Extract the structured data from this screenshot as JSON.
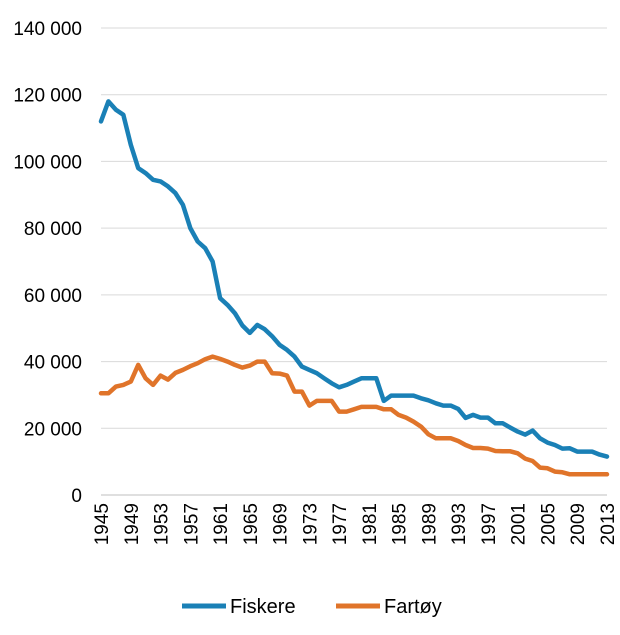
{
  "chart_data": {
    "type": "line",
    "title": "",
    "xlabel": "",
    "ylabel": "",
    "ylim": [
      0,
      140000
    ],
    "yticks": [
      0,
      20000,
      40000,
      60000,
      80000,
      100000,
      120000,
      140000
    ],
    "ytick_labels": [
      "0",
      "20 000",
      "40 000",
      "60 000",
      "80 000",
      "100 000",
      "120 000",
      "140 000"
    ],
    "xtick_labels": [
      "1945",
      "1949",
      "1953",
      "1957",
      "1961",
      "1965",
      "1969",
      "1973",
      "1977",
      "1981",
      "1985",
      "1989",
      "1993",
      "1997",
      "2001",
      "2005",
      "2009",
      "2013"
    ],
    "grid": "horizontal",
    "legend_position": "bottom",
    "x": [
      1945,
      1946,
      1947,
      1948,
      1949,
      1950,
      1951,
      1952,
      1953,
      1954,
      1955,
      1956,
      1957,
      1958,
      1959,
      1960,
      1961,
      1962,
      1963,
      1964,
      1965,
      1966,
      1967,
      1968,
      1969,
      1970,
      1971,
      1972,
      1973,
      1974,
      1975,
      1976,
      1977,
      1978,
      1979,
      1980,
      1981,
      1982,
      1983,
      1984,
      1985,
      1986,
      1987,
      1988,
      1989,
      1990,
      1991,
      1992,
      1993,
      1994,
      1995,
      1996,
      1997,
      1998,
      1999,
      2000,
      2001,
      2002,
      2003,
      2004,
      2005,
      2006,
      2007,
      2008,
      2009,
      2010,
      2011,
      2012,
      2013
    ],
    "series": [
      {
        "name": "Fiskere",
        "color": "#1a80b6",
        "values": [
          112000,
          118000,
          115500,
          114000,
          105000,
          98000,
          96500,
          94500,
          94000,
          92500,
          90500,
          87000,
          80000,
          76000,
          74000,
          70000,
          59000,
          57000,
          54500,
          50800,
          48600,
          51000,
          49700,
          47600,
          45000,
          43500,
          41500,
          38500,
          37500,
          36500,
          35000,
          33500,
          32300,
          33000,
          34000,
          35000,
          35000,
          35000,
          28200,
          29800,
          29800,
          29800,
          29800,
          29000,
          28400,
          27500,
          26800,
          26800,
          25800,
          23100,
          24000,
          23200,
          23200,
          21500,
          21500,
          20200,
          19000,
          18100,
          19300,
          17000,
          15700,
          15000,
          13900,
          14000,
          13000,
          13000,
          13000,
          12100,
          11500
        ]
      },
      {
        "name": "Fartøy",
        "color": "#e0742a",
        "values": [
          30500,
          30500,
          32500,
          33000,
          34000,
          39000,
          35000,
          33000,
          35800,
          34600,
          36600,
          37500,
          38600,
          39500,
          40700,
          41500,
          40800,
          40000,
          39000,
          38200,
          38800,
          40000,
          40000,
          36500,
          36400,
          35800,
          31000,
          31000,
          26800,
          28200,
          28200,
          28200,
          25000,
          25000,
          25700,
          26400,
          26400,
          26400,
          25700,
          25700,
          24000,
          23200,
          22000,
          20500,
          18200,
          17000,
          17000,
          17000,
          16200,
          15000,
          14100,
          14100,
          13900,
          13200,
          13100,
          13100,
          12500,
          10900,
          10200,
          8200,
          8000,
          7000,
          6800,
          6200,
          6200,
          6200,
          6200,
          6200,
          6200
        ]
      }
    ]
  }
}
